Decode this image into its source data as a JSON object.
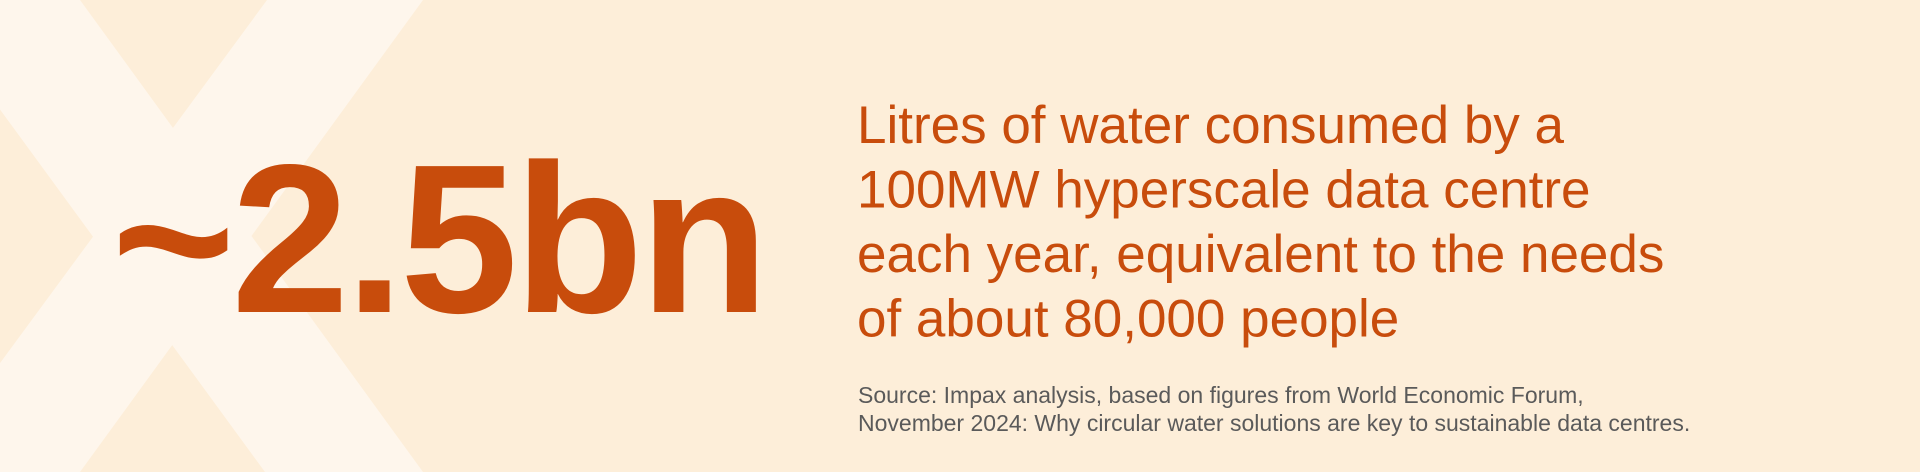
{
  "stat": "~2.5bn",
  "description": [
    "Litres of water consumed by a",
    "100MW hyperscale data centre",
    "each year, equivalent to the needs",
    "of about 80,000 people"
  ],
  "source": [
    "Source: Impax analysis, based on figures from World Economic Forum,",
    "November 2024: Why circular water solutions are key to sustainable data centres."
  ]
}
